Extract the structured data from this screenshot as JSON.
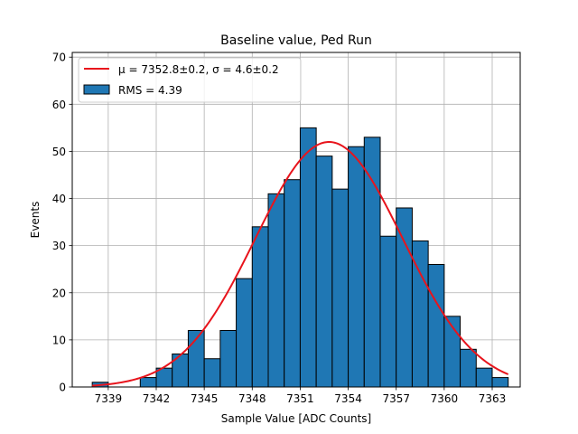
{
  "chart_data": {
    "type": "bar",
    "title": "Baseline value, Ped Run",
    "xlabel": "Sample Value [ADC Counts]",
    "ylabel": "Events",
    "xlim": [
      7336.75,
      7364.75
    ],
    "ylim": [
      0,
      71
    ],
    "xticks": [
      7339,
      7342,
      7345,
      7348,
      7351,
      7354,
      7357,
      7360,
      7363
    ],
    "yticks": [
      0,
      10,
      20,
      30,
      40,
      50,
      60,
      70
    ],
    "grid": true,
    "histogram": {
      "name": "RMS = 4.39",
      "color": "#1f77b4",
      "edge_color": "#000000",
      "bins": [
        {
          "x0": 7338.0,
          "x1": 7339.0,
          "value": 1
        },
        {
          "x0": 7339.0,
          "x1": 7340.0,
          "value": 0
        },
        {
          "x0": 7340.0,
          "x1": 7341.0,
          "value": 0
        },
        {
          "x0": 7341.0,
          "x1": 7342.0,
          "value": 2
        },
        {
          "x0": 7342.0,
          "x1": 7343.0,
          "value": 4
        },
        {
          "x0": 7343.0,
          "x1": 7344.0,
          "value": 7
        },
        {
          "x0": 7344.0,
          "x1": 7345.0,
          "value": 12
        },
        {
          "x0": 7345.0,
          "x1": 7346.0,
          "value": 6
        },
        {
          "x0": 7346.0,
          "x1": 7347.0,
          "value": 12
        },
        {
          "x0": 7347.0,
          "x1": 7348.0,
          "value": 23
        },
        {
          "x0": 7348.0,
          "x1": 7349.0,
          "value": 34
        },
        {
          "x0": 7349.0,
          "x1": 7350.0,
          "value": 41
        },
        {
          "x0": 7350.0,
          "x1": 7351.0,
          "value": 44
        },
        {
          "x0": 7351.0,
          "x1": 7352.0,
          "value": 55
        },
        {
          "x0": 7352.0,
          "x1": 7353.0,
          "value": 49
        },
        {
          "x0": 7353.0,
          "x1": 7354.0,
          "value": 42
        },
        {
          "x0": 7354.0,
          "x1": 7355.0,
          "value": 51
        },
        {
          "x0": 7355.0,
          "x1": 7356.0,
          "value": 53
        },
        {
          "x0": 7356.0,
          "x1": 7357.0,
          "value": 32
        },
        {
          "x0": 7357.0,
          "x1": 7358.0,
          "value": 38
        },
        {
          "x0": 7358.0,
          "x1": 7359.0,
          "value": 31
        },
        {
          "x0": 7359.0,
          "x1": 7360.0,
          "value": 26
        },
        {
          "x0": 7360.0,
          "x1": 7361.0,
          "value": 15
        },
        {
          "x0": 7361.0,
          "x1": 7362.0,
          "value": 8
        },
        {
          "x0": 7362.0,
          "x1": 7363.0,
          "value": 4
        },
        {
          "x0": 7363.0,
          "x1": 7364.0,
          "value": 2
        }
      ]
    },
    "fit": {
      "type": "gaussian",
      "name": "μ = 7352.8±0.2, σ = 4.6±0.2",
      "color": "#e8141c",
      "mu": 7352.8,
      "sigma": 4.6,
      "amplitude": 52,
      "x_range": [
        7338.0,
        7364.0
      ]
    },
    "legend": {
      "location": "upper-left",
      "entries": [
        {
          "kind": "line",
          "label": "μ = 7352.8±0.2, σ = 4.6±0.2"
        },
        {
          "kind": "patch",
          "label": "RMS = 4.39"
        }
      ]
    }
  }
}
